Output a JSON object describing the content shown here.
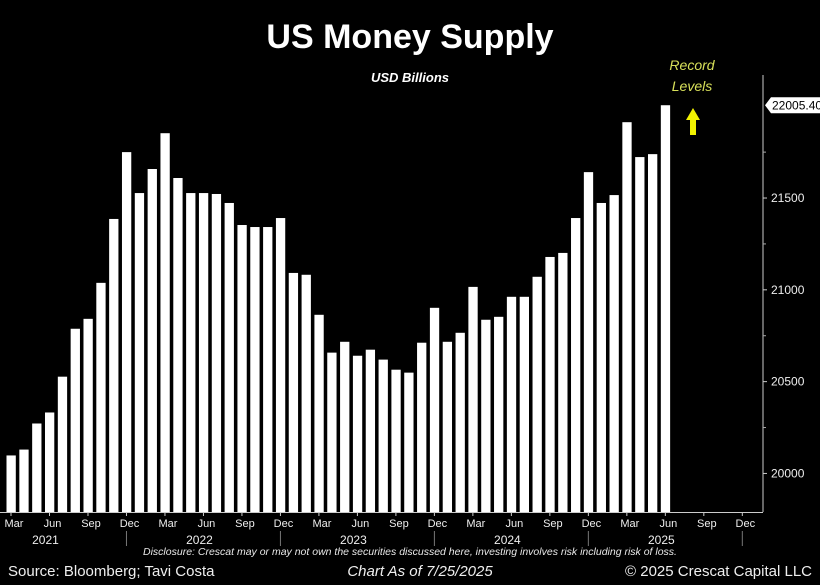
{
  "chart_data": {
    "type": "bar",
    "title": "US Money Supply",
    "subtitle": "USD Billions",
    "annotation": "Record Levels",
    "last_value_label": "22005.40",
    "ylim": [
      19790,
      22170
    ],
    "y_ticks": [
      20000,
      20500,
      21000,
      21500
    ],
    "y_axis_position": "right",
    "grid": false,
    "x_tick_labels": [
      "Mar",
      "Jun",
      "Sep",
      "Dec",
      "Mar",
      "Jun",
      "Sep",
      "Dec",
      "Mar",
      "Jun",
      "Sep",
      "Dec",
      "Mar",
      "Jun",
      "Sep",
      "Dec",
      "Mar",
      "Jun",
      "Sep",
      "Dec"
    ],
    "x_year_labels": [
      "2021",
      "2022",
      "2023",
      "2024",
      "2025"
    ],
    "x_range": [
      "2021-03",
      "2025-12"
    ],
    "categories": [
      "2021-03",
      "2021-04",
      "2021-05",
      "2021-06",
      "2021-07",
      "2021-08",
      "2021-09",
      "2021-10",
      "2021-11",
      "2021-12",
      "2022-01",
      "2022-02",
      "2022-03",
      "2022-04",
      "2022-05",
      "2022-06",
      "2022-07",
      "2022-08",
      "2022-09",
      "2022-10",
      "2022-11",
      "2022-12",
      "2023-01",
      "2023-02",
      "2023-03",
      "2023-04",
      "2023-05",
      "2023-06",
      "2023-07",
      "2023-08",
      "2023-09",
      "2023-10",
      "2023-11",
      "2023-12",
      "2024-01",
      "2024-02",
      "2024-03",
      "2024-04",
      "2024-05",
      "2024-06",
      "2024-07",
      "2024-08",
      "2024-09",
      "2024-10",
      "2024-11",
      "2024-12",
      "2025-01",
      "2025-02",
      "2025-03",
      "2025-04",
      "2025-05",
      "2025-06"
    ],
    "values": [
      20098,
      20130,
      20272,
      20332,
      20527,
      20788,
      20842,
      21038,
      21386,
      21750,
      21527,
      21658,
      21853,
      21609,
      21527,
      21527,
      21522,
      21473,
      21353,
      21342,
      21342,
      21391,
      21092,
      21082,
      20864,
      20658,
      20717,
      20641,
      20674,
      20620,
      20565,
      20549,
      20712,
      20902,
      20717,
      20766,
      21016,
      20837,
      20853,
      20962,
      20962,
      21071,
      21179,
      21201,
      21391,
      21641,
      21473,
      21516,
      21913,
      21723,
      21739,
      22005.4
    ],
    "colors": {
      "bars": "#ffffff",
      "background": "#000000",
      "annotation": "#d8e05a",
      "arrow": "#f2f200"
    }
  },
  "disclosure": "Disclosure: Crescat may or may not own the securities discussed here, investing involves risk including risk of loss.",
  "source": "Source: Bloomberg; Tavi Costa",
  "chart_as_of": "Chart As of 7/25/2025",
  "copyright": "© 2025 Crescat Capital LLC"
}
